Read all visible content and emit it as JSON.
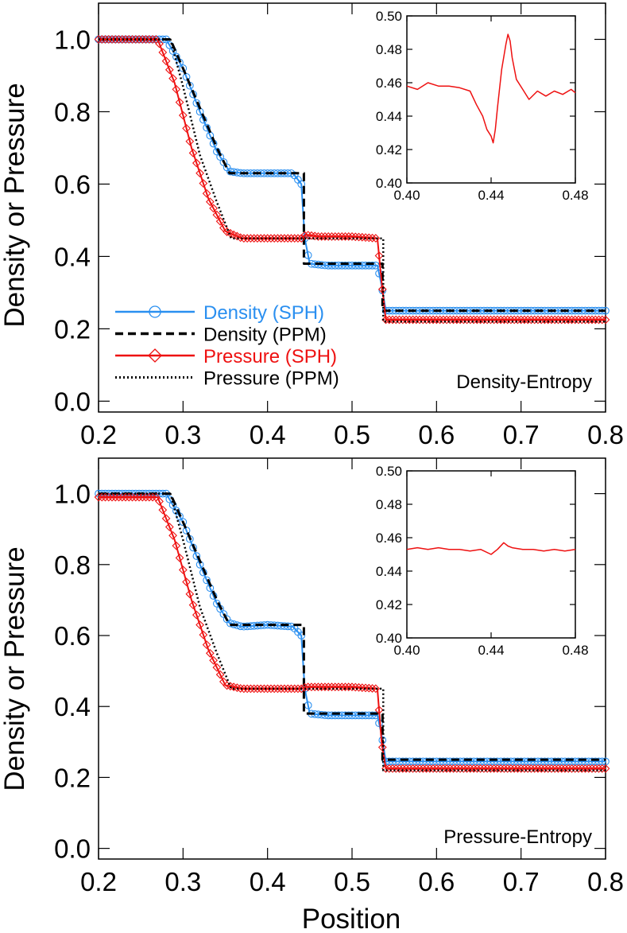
{
  "figure": {
    "ylabel": "Density or Pressure",
    "xlabel": "Position"
  },
  "colors": {
    "density_sph": "#2a8ff0",
    "density_ppm": "#000000",
    "pressure_sph": "#ee1111",
    "pressure_ppm": "#000000"
  },
  "legend": {
    "placement": "lower-left",
    "entries": [
      {
        "name": "Density (SPH)",
        "color": "#2a8ff0",
        "style": "solid-circle"
      },
      {
        "name": "Density (PPM)",
        "color": "#000000",
        "style": "dashed"
      },
      {
        "name": "Pressure (SPH)",
        "color": "#ee1111",
        "style": "solid-diamond"
      },
      {
        "name": "Pressure (PPM)",
        "color": "#000000",
        "style": "dotted"
      }
    ]
  },
  "chart_data": [
    {
      "type": "line",
      "panel_label": "Density-Entropy",
      "xlim": [
        0.2,
        0.8
      ],
      "ylim": [
        -0.03,
        1.1
      ],
      "xticks": [
        "0.2",
        "0.3",
        "0.4",
        "0.5",
        "0.6",
        "0.7",
        "0.8"
      ],
      "yticks": [
        "0.0",
        "0.2",
        "0.4",
        "0.6",
        "0.8",
        "1.0"
      ],
      "series": [
        {
          "name": "Density (SPH)",
          "x": [
            0.2,
            0.28,
            0.3,
            0.32,
            0.34,
            0.355,
            0.37,
            0.4,
            0.43,
            0.44,
            0.444,
            0.45,
            0.47,
            0.5,
            0.53,
            0.535,
            0.54,
            0.6,
            0.7,
            0.8
          ],
          "values": [
            1.0,
            1.0,
            0.92,
            0.8,
            0.69,
            0.635,
            0.63,
            0.63,
            0.63,
            0.6,
            0.45,
            0.38,
            0.375,
            0.375,
            0.375,
            0.32,
            0.25,
            0.25,
            0.25,
            0.25
          ]
        },
        {
          "name": "Density (PPM)",
          "x": [
            0.2,
            0.285,
            0.3,
            0.32,
            0.34,
            0.355,
            0.44,
            0.443,
            0.443,
            0.534,
            0.536,
            0.536,
            0.8
          ],
          "values": [
            1.0,
            1.0,
            0.92,
            0.81,
            0.7,
            0.63,
            0.63,
            0.63,
            0.38,
            0.38,
            0.38,
            0.25,
            0.25
          ]
        },
        {
          "name": "Pressure (SPH)",
          "x": [
            0.2,
            0.27,
            0.29,
            0.31,
            0.33,
            0.35,
            0.37,
            0.4,
            0.44,
            0.445,
            0.46,
            0.5,
            0.53,
            0.535,
            0.54,
            0.6,
            0.7,
            0.8
          ],
          "values": [
            1.0,
            1.0,
            0.88,
            0.7,
            0.56,
            0.47,
            0.45,
            0.45,
            0.45,
            0.46,
            0.455,
            0.455,
            0.45,
            0.33,
            0.225,
            0.225,
            0.225,
            0.225
          ]
        },
        {
          "name": "Pressure (PPM)",
          "x": [
            0.2,
            0.285,
            0.3,
            0.32,
            0.34,
            0.357,
            0.534,
            0.537,
            0.537,
            0.8
          ],
          "values": [
            1.0,
            1.0,
            0.87,
            0.68,
            0.55,
            0.45,
            0.45,
            0.45,
            0.22,
            0.22
          ]
        }
      ],
      "inset": {
        "type": "line",
        "xlim": [
          0.4,
          0.48
        ],
        "ylim": [
          0.4,
          0.5
        ],
        "xticks": [
          "0.40",
          "0.44",
          "0.48"
        ],
        "yticks": [
          "0.40",
          "0.42",
          "0.44",
          "0.46",
          "0.48",
          "0.50"
        ],
        "series": [
          {
            "name": "Pressure (SPH)",
            "x": [
              0.4,
              0.405,
              0.41,
              0.415,
              0.42,
              0.425,
              0.43,
              0.433,
              0.436,
              0.438,
              0.44,
              0.441,
              0.442,
              0.443,
              0.445,
              0.447,
              0.448,
              0.449,
              0.45,
              0.452,
              0.455,
              0.458,
              0.462,
              0.466,
              0.47,
              0.474,
              0.478,
              0.48
            ],
            "values": [
              0.458,
              0.456,
              0.46,
              0.458,
              0.458,
              0.457,
              0.455,
              0.447,
              0.44,
              0.432,
              0.428,
              0.424,
              0.432,
              0.445,
              0.468,
              0.483,
              0.489,
              0.485,
              0.475,
              0.462,
              0.456,
              0.45,
              0.455,
              0.452,
              0.455,
              0.453,
              0.456,
              0.454
            ]
          }
        ]
      }
    },
    {
      "type": "line",
      "panel_label": "Pressure-Entropy",
      "xlim": [
        0.2,
        0.8
      ],
      "ylim": [
        -0.03,
        1.1
      ],
      "xticks": [
        "0.2",
        "0.3",
        "0.4",
        "0.5",
        "0.6",
        "0.7",
        "0.8"
      ],
      "yticks": [
        "0.0",
        "0.2",
        "0.4",
        "0.6",
        "0.8",
        "1.0"
      ],
      "series": [
        {
          "name": "Density (SPH)",
          "x": [
            0.2,
            0.28,
            0.3,
            0.32,
            0.34,
            0.355,
            0.37,
            0.4,
            0.43,
            0.44,
            0.444,
            0.45,
            0.47,
            0.5,
            0.53,
            0.535,
            0.54,
            0.6,
            0.7,
            0.8
          ],
          "values": [
            1.0,
            1.0,
            0.92,
            0.8,
            0.69,
            0.635,
            0.625,
            0.63,
            0.625,
            0.6,
            0.45,
            0.38,
            0.375,
            0.375,
            0.375,
            0.32,
            0.245,
            0.245,
            0.245,
            0.245
          ]
        },
        {
          "name": "Density (PPM)",
          "x": [
            0.2,
            0.285,
            0.3,
            0.32,
            0.34,
            0.355,
            0.44,
            0.443,
            0.443,
            0.534,
            0.536,
            0.536,
            0.8
          ],
          "values": [
            1.0,
            1.0,
            0.92,
            0.81,
            0.7,
            0.63,
            0.63,
            0.63,
            0.38,
            0.38,
            0.38,
            0.25,
            0.25
          ]
        },
        {
          "name": "Pressure (SPH)",
          "x": [
            0.2,
            0.27,
            0.29,
            0.31,
            0.33,
            0.35,
            0.37,
            0.4,
            0.44,
            0.445,
            0.46,
            0.5,
            0.53,
            0.535,
            0.54,
            0.6,
            0.7,
            0.8
          ],
          "values": [
            0.99,
            0.99,
            0.87,
            0.7,
            0.56,
            0.46,
            0.45,
            0.45,
            0.45,
            0.455,
            0.455,
            0.455,
            0.45,
            0.3,
            0.225,
            0.225,
            0.225,
            0.225
          ]
        },
        {
          "name": "Pressure (PPM)",
          "x": [
            0.2,
            0.285,
            0.3,
            0.32,
            0.34,
            0.357,
            0.534,
            0.537,
            0.537,
            0.8
          ],
          "values": [
            1.0,
            1.0,
            0.87,
            0.68,
            0.55,
            0.45,
            0.45,
            0.45,
            0.22,
            0.22
          ]
        }
      ],
      "inset": {
        "type": "line",
        "xlim": [
          0.4,
          0.48
        ],
        "ylim": [
          0.4,
          0.5
        ],
        "xticks": [
          "0.40",
          "0.44",
          "0.48"
        ],
        "yticks": [
          "0.40",
          "0.42",
          "0.44",
          "0.46",
          "0.48",
          "0.50"
        ],
        "series": [
          {
            "name": "Pressure (SPH)",
            "x": [
              0.4,
              0.405,
              0.41,
              0.415,
              0.42,
              0.425,
              0.43,
              0.435,
              0.44,
              0.443,
              0.446,
              0.448,
              0.45,
              0.455,
              0.46,
              0.465,
              0.47,
              0.475,
              0.48
            ],
            "values": [
              0.453,
              0.454,
              0.453,
              0.454,
              0.453,
              0.453,
              0.452,
              0.453,
              0.45,
              0.453,
              0.457,
              0.455,
              0.454,
              0.453,
              0.453,
              0.452,
              0.453,
              0.452,
              0.453
            ]
          }
        ]
      }
    }
  ]
}
